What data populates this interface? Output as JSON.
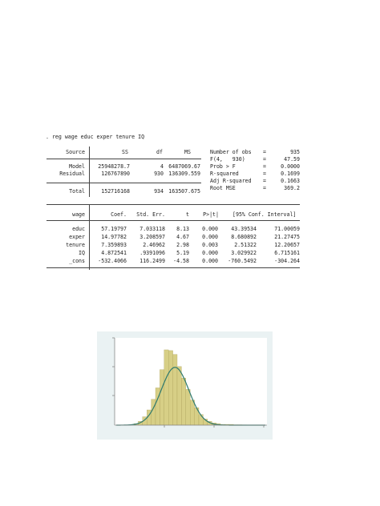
{
  "command": ". reg wage educ exper tenure IQ",
  "anova": {
    "headers": [
      "Source",
      "SS",
      "df",
      "MS"
    ],
    "rows": [
      {
        "source": "Model",
        "ss": "25948278.7",
        "df": "4",
        "ms": "6487069.67"
      },
      {
        "source": "Residual",
        "ss": "126767890",
        "df": "930",
        "ms": "136309.559"
      },
      {
        "source": "Total",
        "ss": "152716168",
        "df": "934",
        "ms": "163507.675"
      }
    ]
  },
  "stats": [
    {
      "label": "Number of obs",
      "eq": "=",
      "value": "935"
    },
    {
      "label": "F(4,   930)",
      "eq": "=",
      "value": "47.59"
    },
    {
      "label": "Prob > F",
      "eq": "=",
      "value": "0.0000"
    },
    {
      "label": "R-squared",
      "eq": "=",
      "value": "0.1699"
    },
    {
      "label": "Adj R-squared",
      "eq": "=",
      "value": "0.1663"
    },
    {
      "label": "Root MSE",
      "eq": "=",
      "value": "369.2"
    }
  ],
  "coef": {
    "headers": [
      "wage",
      "Coef.",
      "Std. Err.",
      "t",
      "P>|t|",
      "[95% Conf. Interval]"
    ],
    "rows": [
      {
        "var": "educ",
        "coef": "57.19797",
        "se": "7.033118",
        "t": "8.13",
        "p": "0.000",
        "lo": "43.39534",
        "hi": "71.00059"
      },
      {
        "var": "exper",
        "coef": "14.97782",
        "se": "3.208597",
        "t": "4.67",
        "p": "0.000",
        "lo": "8.680892",
        "hi": "21.27475"
      },
      {
        "var": "tenure",
        "coef": "7.359893",
        "se": "2.46962",
        "t": "2.98",
        "p": "0.003",
        "lo": "2.51322",
        "hi": "12.20657"
      },
      {
        "var": "IQ",
        "coef": "4.872541",
        "se": ".9391096",
        "t": "5.19",
        "p": "0.000",
        "lo": "3.029922",
        "hi": "6.715161"
      },
      {
        "var": "_cons",
        "coef": "-532.4066",
        "se": "116.2499",
        "t": "-4.58",
        "p": "0.000",
        "lo": "-760.5492",
        "hi": "-304.264"
      }
    ]
  },
  "histogram": {
    "colors": {
      "bar": "#d7cf86",
      "bar_edge": "#a59a52",
      "curve": "#2e7a6e",
      "bg": "#eaf2f3",
      "plot": "#ffffff"
    },
    "bar_heights": [
      0.02,
      0.05,
      0.11,
      0.2,
      0.34,
      0.49,
      0.73,
      0.99,
      0.98,
      0.93,
      0.77,
      0.62,
      0.47,
      0.33,
      0.23,
      0.14,
      0.08,
      0.05,
      0.03,
      0.02,
      0.01,
      0.01,
      0.01,
      0.005,
      0.005,
      0.004,
      0.003,
      0.002
    ],
    "curve_mean_index": 9.0,
    "curve_sd_bins": 3.2,
    "curve_peak": 0.76
  }
}
